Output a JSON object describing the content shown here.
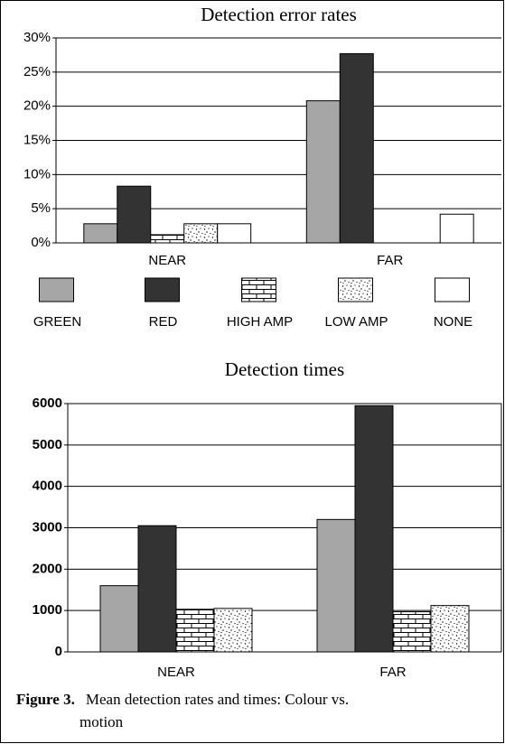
{
  "chart_data": [
    {
      "type": "bar",
      "title": "Detection error rates",
      "categories": [
        "NEAR",
        "FAR"
      ],
      "series": [
        {
          "name": "GREEN",
          "color": "#a6a6a6",
          "values": [
            2.8,
            20.8
          ]
        },
        {
          "name": "RED",
          "color": "#333333",
          "values": [
            8.3,
            27.7
          ]
        },
        {
          "name": "HIGH AMP",
          "color": "#ffffff",
          "pattern": "brick",
          "values": [
            1.2,
            null
          ]
        },
        {
          "name": "LOW AMP",
          "color": "#ffffff",
          "pattern": "dots",
          "values": [
            2.8,
            null
          ]
        },
        {
          "name": "NONE",
          "color": "#ffffff",
          "values": [
            2.8,
            4.2
          ]
        }
      ],
      "ylim": [
        0,
        30
      ],
      "yticks": [
        {
          "value": 0,
          "label": "0%"
        },
        {
          "value": 5,
          "label": "5%"
        },
        {
          "value": 10,
          "label": "10%"
        },
        {
          "value": 15,
          "label": "15%"
        },
        {
          "value": 20,
          "label": "20%"
        },
        {
          "value": 25,
          "label": "25%"
        },
        {
          "value": 30,
          "label": "30%"
        }
      ],
      "grid": true,
      "legend": "bottom"
    },
    {
      "type": "bar",
      "title": "Detection  times",
      "categories": [
        "NEAR",
        "FAR"
      ],
      "series": [
        {
          "color": "#a6a6a6",
          "values": [
            1600,
            3200
          ]
        },
        {
          "color": "#333333",
          "values": [
            3050,
            5950
          ]
        },
        {
          "color": "#ffffff",
          "pattern": "brick",
          "values": [
            1030,
            970
          ]
        },
        {
          "color": "#ffffff",
          "pattern": "dots",
          "values": [
            1050,
            1120
          ]
        }
      ],
      "ylim": [
        0,
        6000
      ],
      "yticks": [
        0,
        1000,
        2000,
        3000,
        4000,
        5000,
        6000
      ],
      "grid": true
    }
  ],
  "caption": {
    "label": "Figure 3.",
    "text": "Mean detection rates and times: Colour vs. motion"
  }
}
